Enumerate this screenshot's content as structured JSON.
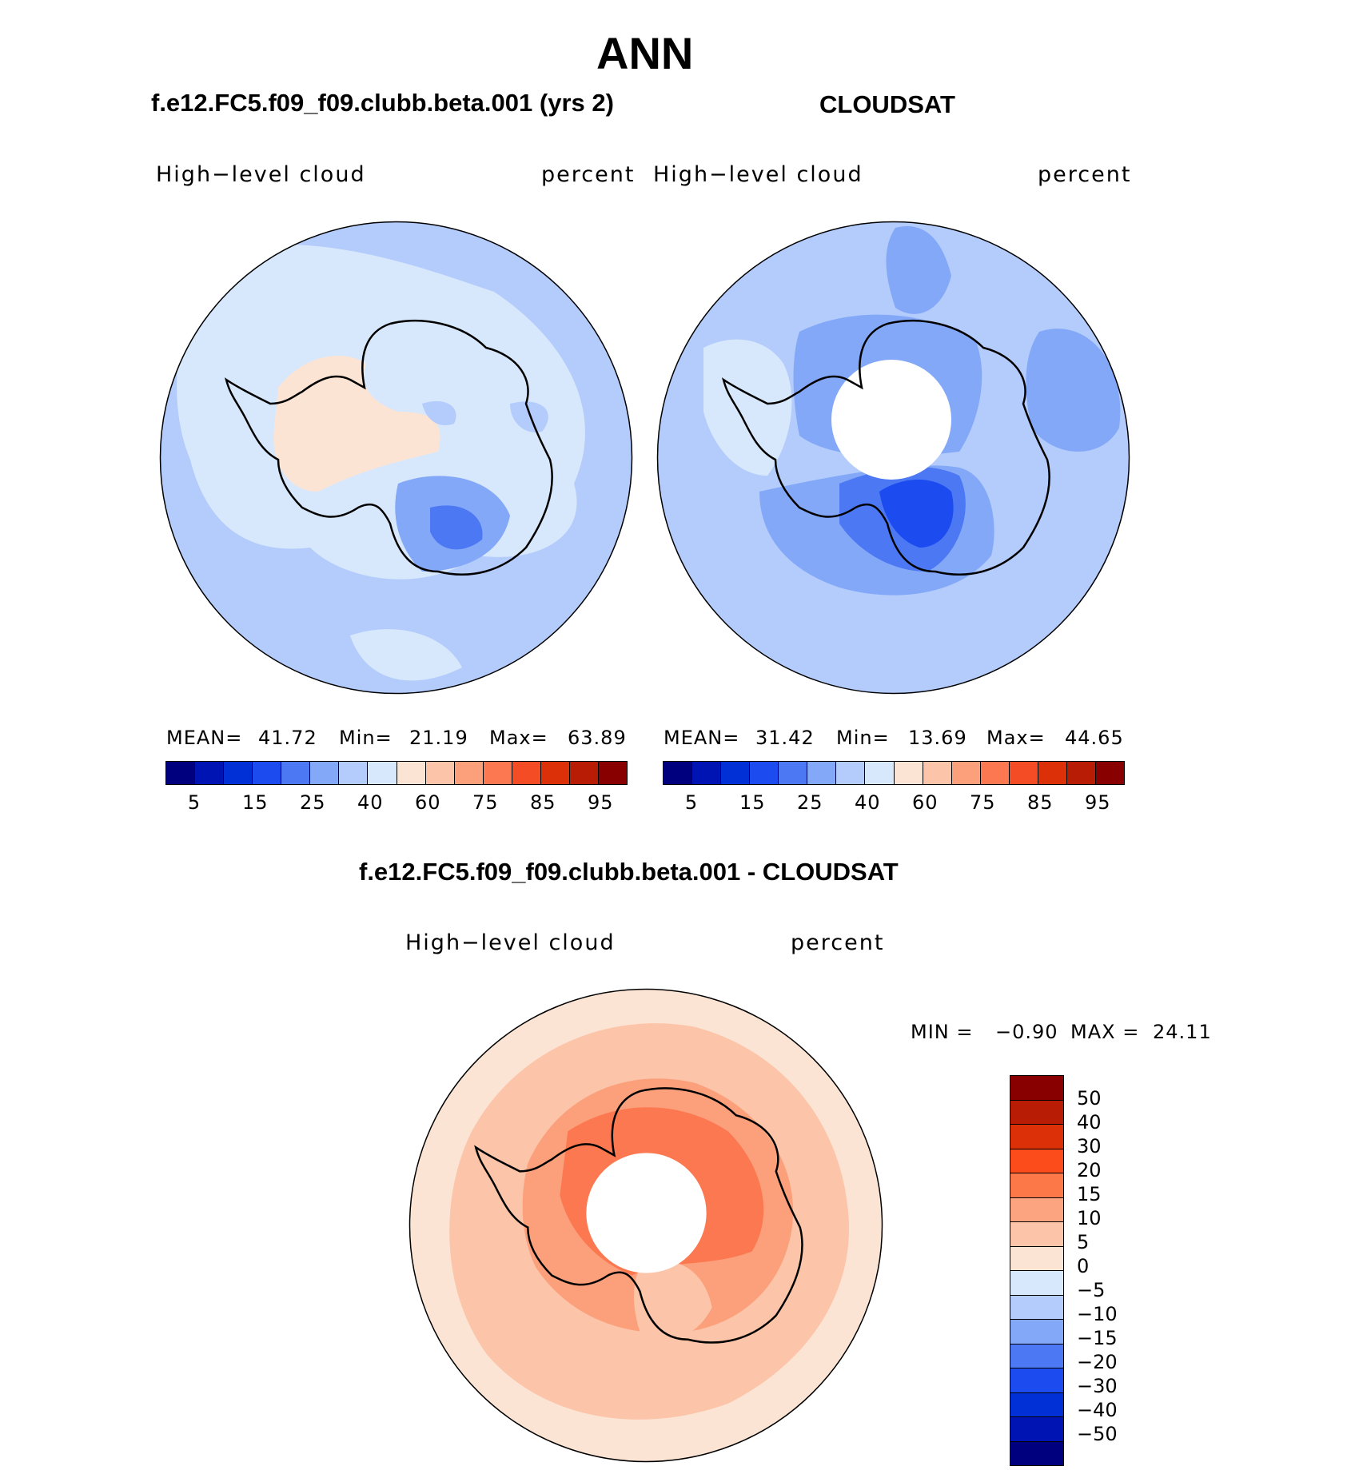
{
  "figure": {
    "season": "ANN",
    "left_panel_title": "f.e12.FC5.f09_f09.clubb.beta.001 (yrs 2)",
    "right_panel_title": "CLOUDSAT",
    "diff_panel_title": "f.e12.FC5.f09_f09.clubb.beta.001 - CLOUDSAT"
  },
  "panels": {
    "model": {
      "variable": "High−level cloud",
      "units": "percent",
      "stats": {
        "mean_label": "MEAN=",
        "mean": "41.72",
        "min_label": "Min=",
        "min": "21.19",
        "max_label": "Max=",
        "max": "63.89"
      }
    },
    "obs": {
      "variable": "High−level cloud",
      "units": "percent",
      "stats": {
        "mean_label": "MEAN=",
        "mean": "31.42",
        "min_label": "Min=",
        "min": "13.69",
        "max_label": "Max=",
        "max": "44.65"
      }
    },
    "diff": {
      "variable": "High−level cloud",
      "units": "percent",
      "stats": {
        "min_label": "MIN =",
        "min": "−0.90",
        "max_label": "MAX =",
        "max": "24.11"
      }
    }
  },
  "colorbar_main": {
    "labels": [
      "5",
      "15",
      "25",
      "40",
      "60",
      "75",
      "85",
      "95"
    ],
    "colors": [
      "#00007f",
      "#0014b4",
      "#0030d6",
      "#1c4cf0",
      "#4c78f4",
      "#84a8f8",
      "#b4ccfc",
      "#d8e8fc",
      "#fce4d4",
      "#fcc4a8",
      "#fca07c",
      "#fc7850",
      "#f44c24",
      "#dc3008",
      "#b81c04",
      "#880000"
    ]
  },
  "colorbar_diff": {
    "labels": [
      "50",
      "40",
      "30",
      "20",
      "15",
      "10",
      "5",
      "0",
      "−5",
      "−10",
      "−15",
      "−20",
      "−30",
      "−40",
      "−50"
    ],
    "colors": [
      "#880000",
      "#b81c04",
      "#dc3008",
      "#fc4c1c",
      "#fc7848",
      "#fca480",
      "#fcc4a8",
      "#fce4d4",
      "#d8e8fc",
      "#b4ccfc",
      "#84a8f8",
      "#4c78f4",
      "#1c4cf0",
      "#0030d6",
      "#0014b4",
      "#00007f"
    ]
  }
}
